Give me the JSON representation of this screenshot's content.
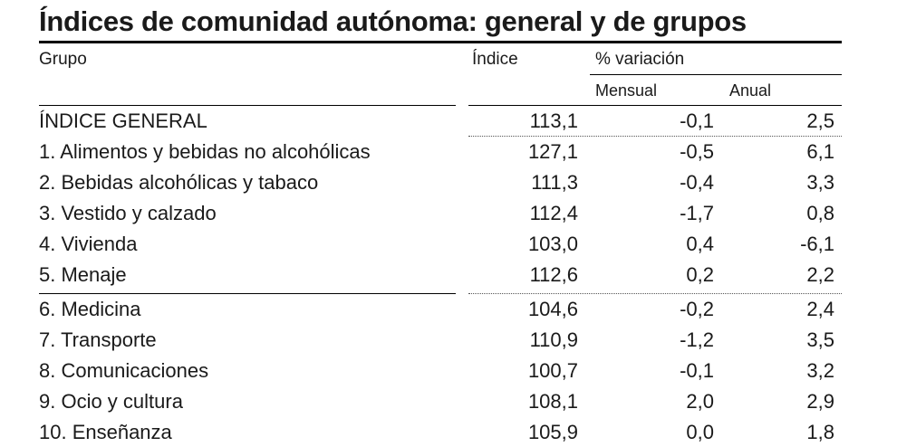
{
  "title": "Índices de comunidad autónoma: general y de grupos",
  "headers": {
    "grupo": "Grupo",
    "indice": "Índice",
    "variacion": "% variación",
    "mensual": "Mensual",
    "anual": "Anual"
  },
  "rows": [
    {
      "name": "ÍNDICE GENERAL",
      "indice": "113,1",
      "mensual": "-0,1",
      "anual": "2,5"
    },
    {
      "name": "1. Alimentos y bebidas no alcohólicas",
      "indice": "127,1",
      "mensual": "-0,5",
      "anual": "6,1"
    },
    {
      "name": "2. Bebidas alcohólicas y tabaco",
      "indice": "111,3",
      "mensual": "-0,4",
      "anual": "3,3"
    },
    {
      "name": "3. Vestido y calzado",
      "indice": "112,4",
      "mensual": "-1,7",
      "anual": "0,8"
    },
    {
      "name": "4. Vivienda",
      "indice": "103,0",
      "mensual": "0,4",
      "anual": "-6,1"
    },
    {
      "name": "5. Menaje",
      "indice": "112,6",
      "mensual": "0,2",
      "anual": "2,2"
    },
    {
      "name": "6. Medicina",
      "indice": "104,6",
      "mensual": "-0,2",
      "anual": "2,4"
    },
    {
      "name": "7. Transporte",
      "indice": "110,9",
      "mensual": "-1,2",
      "anual": "3,5"
    },
    {
      "name": "8. Comunicaciones",
      "indice": "100,7",
      "mensual": "-0,1",
      "anual": "3,2"
    },
    {
      "name": "9. Ocio y cultura",
      "indice": "108,1",
      "mensual": "2,0",
      "anual": "2,9"
    },
    {
      "name": "10. Enseñanza",
      "indice": "105,9",
      "mensual": "0,0",
      "anual": "1,8"
    }
  ]
}
